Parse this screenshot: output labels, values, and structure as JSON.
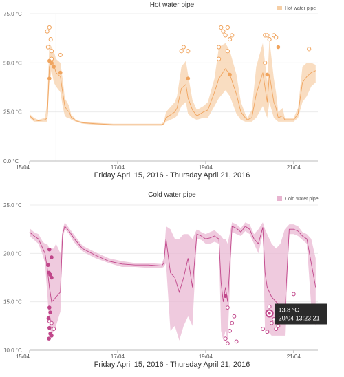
{
  "chart_data": [
    {
      "type": "line",
      "title": "Hot water pipe",
      "legend": {
        "label": "Hot water pipe",
        "position": "top-right"
      },
      "xlabel": "Friday April 15, 2016 - Thursday April 21, 2016",
      "ylabel": "",
      "xlim": [
        15.0,
        21.55
      ],
      "x_ticks": [
        {
          "x": 15,
          "label": "15/04"
        },
        {
          "x": 17,
          "label": "17/04"
        },
        {
          "x": 19,
          "label": "19/04"
        },
        {
          "x": 21,
          "label": "21/04"
        }
      ],
      "ylim": [
        0,
        75
      ],
      "y_ticks": [
        {
          "y": 0,
          "label": "0.0 °C"
        },
        {
          "y": 25,
          "label": "25.0 °C"
        },
        {
          "y": 50,
          "label": "50.0 °C"
        },
        {
          "y": 75,
          "label": "75.0 °C"
        }
      ],
      "color": "#f0a45e",
      "band_color": "#f6cfa6",
      "cursor_x": 15.6,
      "series": [
        {
          "x": [
            15.0,
            15.1,
            15.2,
            15.35,
            15.4,
            15.45,
            15.5,
            15.55,
            15.6,
            15.7,
            15.75,
            15.8,
            15.85,
            15.9,
            15.95,
            16.0,
            16.05,
            16.2,
            16.5,
            16.9,
            17.3,
            17.7,
            18.0,
            18.05,
            18.1,
            18.3,
            18.35,
            18.45,
            18.55,
            18.6,
            18.7,
            18.8,
            18.95,
            19.05,
            19.2,
            19.3,
            19.45,
            19.55,
            19.7,
            19.8,
            19.9,
            19.95,
            20.05,
            20.15,
            20.3,
            20.4,
            20.45,
            20.55,
            20.6,
            20.65,
            20.75,
            20.8,
            21.0,
            21.1,
            21.2,
            21.3,
            21.4,
            21.5
          ],
          "mean": [
            23,
            21,
            20.5,
            21,
            22,
            48,
            51,
            49,
            45,
            43,
            35,
            28,
            26,
            25,
            22,
            21.5,
            20.5,
            19.5,
            19,
            18.5,
            18.5,
            18.5,
            18.5,
            19,
            22,
            25,
            27,
            37,
            39,
            32,
            26,
            23,
            25,
            26,
            35,
            42,
            47,
            44,
            34,
            25,
            22,
            21,
            22,
            34,
            45,
            30,
            44,
            30,
            27,
            22,
            23,
            21,
            21,
            24,
            40,
            43,
            45,
            46
          ],
          "lower": [
            22,
            20,
            20,
            20,
            20,
            40,
            46,
            40,
            38,
            35,
            28,
            23,
            22,
            22,
            21,
            20.5,
            20,
            19,
            18.5,
            18,
            18,
            18,
            18,
            18.5,
            20,
            22,
            23,
            28,
            30,
            24,
            22,
            21,
            22,
            22,
            28,
            32,
            36,
            33,
            24,
            21,
            20,
            20,
            20,
            22,
            28,
            22,
            30,
            22,
            21,
            20,
            20,
            20,
            20,
            22,
            30,
            33,
            38,
            40
          ],
          "upper": [
            24,
            22,
            21,
            22,
            30,
            60,
            58,
            56,
            52,
            50,
            42,
            32,
            30,
            28,
            23,
            22.5,
            21,
            20,
            19.5,
            19,
            19,
            19,
            19,
            20,
            25,
            30,
            33,
            48,
            51,
            44,
            31,
            26,
            28,
            30,
            42,
            58,
            60,
            56,
            44,
            30,
            24,
            22,
            26,
            48,
            60,
            40,
            62,
            42,
            35,
            25,
            27,
            22,
            22,
            27,
            48,
            50,
            50,
            49
          ],
          "max_points": [
            [
              15.4,
              66
            ],
            [
              15.45,
              68
            ],
            [
              15.42,
              58
            ],
            [
              15.48,
              62
            ],
            [
              15.5,
              56
            ],
            [
              15.5,
              52
            ],
            [
              15.7,
              54
            ],
            [
              18.45,
              56
            ],
            [
              18.5,
              58
            ],
            [
              18.6,
              56
            ],
            [
              19.3,
              58
            ],
            [
              19.35,
              68
            ],
            [
              19.4,
              66
            ],
            [
              19.45,
              64
            ],
            [
              19.5,
              68
            ],
            [
              19.5,
              56
            ],
            [
              19.55,
              62
            ],
            [
              19.6,
              64
            ],
            [
              19.3,
              52
            ],
            [
              20.35,
              64
            ],
            [
              20.4,
              64
            ],
            [
              20.45,
              62
            ],
            [
              20.55,
              64
            ],
            [
              20.6,
              63
            ],
            [
              20.35,
              50
            ],
            [
              21.35,
              57
            ]
          ],
          "filled_points": [
            [
              15.45,
              51
            ],
            [
              15.5,
              50
            ],
            [
              15.55,
              48
            ],
            [
              15.45,
              42
            ],
            [
              15.7,
              45
            ],
            [
              18.6,
              42
            ],
            [
              19.55,
              44
            ],
            [
              20.4,
              44
            ],
            [
              20.65,
              58
            ]
          ]
        }
      ]
    },
    {
      "type": "line",
      "title": "Cold water pipe",
      "legend": {
        "label": "Cold water pipe",
        "position": "top-right"
      },
      "xlabel": "Friday April 15, 2016 - Thursday April 21, 2016",
      "ylabel": "",
      "xlim": [
        15.0,
        21.55
      ],
      "x_ticks": [
        {
          "x": 15,
          "label": "15/04"
        },
        {
          "x": 17,
          "label": "17/04"
        },
        {
          "x": 19,
          "label": "19/04"
        },
        {
          "x": 21,
          "label": "21/04"
        }
      ],
      "ylim": [
        10,
        25
      ],
      "y_ticks": [
        {
          "y": 10,
          "label": "10.0 °C"
        },
        {
          "y": 15,
          "label": "15.0 °C"
        },
        {
          "y": 20,
          "label": "20.0 °C"
        },
        {
          "y": 25,
          "label": "25.0 °C"
        }
      ],
      "color": "#c0468a",
      "band_color": "#e8b4d0",
      "series": [
        {
          "x": [
            15.0,
            15.1,
            15.2,
            15.3,
            15.35,
            15.4,
            15.45,
            15.5,
            15.55,
            15.6,
            15.7,
            15.75,
            15.8,
            15.9,
            16.0,
            16.2,
            16.5,
            16.8,
            17.1,
            17.4,
            17.7,
            18.0,
            18.05,
            18.1,
            18.2,
            18.3,
            18.4,
            18.5,
            18.6,
            18.7,
            18.8,
            18.9,
            19.0,
            19.1,
            19.2,
            19.3,
            19.35,
            19.4,
            19.45,
            19.5,
            19.6,
            19.7,
            19.8,
            19.9,
            20.0,
            20.1,
            20.2,
            20.3,
            20.35,
            20.4,
            20.5,
            20.6,
            20.7,
            20.8,
            20.9,
            21.0,
            21.1,
            21.2,
            21.3,
            21.4,
            21.5
          ],
          "mean": [
            22.2,
            21.8,
            21.5,
            20.5,
            20.0,
            18.5,
            16.5,
            15.0,
            15.2,
            15.5,
            16.0,
            22.0,
            22.8,
            22.3,
            21.6,
            20.5,
            19.8,
            19.2,
            18.9,
            18.8,
            18.8,
            18.7,
            19.0,
            21.5,
            18.0,
            17.5,
            16.0,
            17.5,
            19.5,
            16.5,
            22.0,
            21.8,
            21.5,
            21.6,
            21.8,
            21.5,
            17.0,
            15.0,
            16.5,
            15.0,
            22.8,
            22.6,
            22.2,
            22.8,
            22.5,
            21.5,
            21.0,
            22.7,
            18.0,
            16.5,
            15.5,
            15.0,
            14.5,
            13.8,
            22.5,
            22.5,
            22.3,
            21.8,
            21.5,
            19.0,
            16.5
          ],
          "lower": [
            21.8,
            21.4,
            21.0,
            19.8,
            19.0,
            16.0,
            12.5,
            11.5,
            12.0,
            12.5,
            14.0,
            21.5,
            22.5,
            22.0,
            21.2,
            20.2,
            19.5,
            19.0,
            18.6,
            18.6,
            18.5,
            18.5,
            18.6,
            19.0,
            12.0,
            12.5,
            11.0,
            12.5,
            13.5,
            12.5,
            21.5,
            21.4,
            21.0,
            21.0,
            21.2,
            21.0,
            12.0,
            11.0,
            12.0,
            11.0,
            22.2,
            22.0,
            21.8,
            22.3,
            22.0,
            21.0,
            20.0,
            22.0,
            12.0,
            12.0,
            11.5,
            11.5,
            11.5,
            11.5,
            22.0,
            22.0,
            21.8,
            21.4,
            21.0,
            14.5,
            12.5
          ],
          "upper": [
            22.6,
            22.2,
            22.0,
            21.2,
            21.0,
            21.0,
            20.5,
            20.5,
            20.5,
            21.0,
            20.0,
            22.5,
            23.2,
            22.6,
            22.0,
            20.8,
            20.1,
            19.5,
            19.2,
            19.0,
            19.0,
            18.9,
            19.5,
            22.8,
            22.5,
            21.5,
            21.5,
            22.0,
            22.0,
            21.5,
            22.5,
            22.2,
            22.0,
            22.2,
            22.4,
            22.0,
            21.8,
            21.5,
            21.5,
            21.0,
            23.2,
            23.0,
            22.6,
            23.2,
            23.0,
            22.0,
            22.5,
            23.2,
            22.5,
            22.0,
            21.0,
            20.5,
            21.0,
            22.5,
            23.0,
            23.0,
            22.8,
            22.2,
            22.0,
            21.5,
            19.5
          ]
        }
      ],
      "min_points": [
        [
          15.45,
          13.0
        ],
        [
          15.5,
          12.8
        ],
        [
          15.55,
          12.2
        ],
        [
          19.45,
          11.2
        ],
        [
          19.5,
          10.7
        ],
        [
          19.55,
          12.0
        ],
        [
          19.6,
          12.8
        ],
        [
          19.65,
          13.5
        ],
        [
          19.7,
          10.9
        ],
        [
          19.5,
          14.4
        ],
        [
          20.3,
          12.2
        ],
        [
          20.4,
          11.9
        ],
        [
          20.5,
          12.8
        ],
        [
          20.55,
          13.2
        ],
        [
          20.6,
          12.2
        ],
        [
          20.65,
          12.5
        ],
        [
          20.45,
          14.5
        ],
        [
          21.0,
          15.8
        ]
      ],
      "filled_points": [
        [
          15.45,
          20.4
        ],
        [
          15.5,
          19.6
        ],
        [
          15.42,
          18.8
        ],
        [
          15.44,
          18.0
        ],
        [
          15.47,
          17.8
        ],
        [
          15.5,
          17.5
        ],
        [
          15.45,
          14.4
        ],
        [
          15.47,
          13.9
        ],
        [
          15.43,
          13.3
        ],
        [
          15.45,
          12.3
        ],
        [
          15.47,
          11.7
        ],
        [
          15.44,
          11.2
        ],
        [
          15.5,
          11.5
        ],
        [
          19.45,
          15.6
        ]
      ],
      "tooltip": {
        "value": "13.8 °C",
        "time": "20/04 13:23:21",
        "x": 20.45,
        "y": 13.8
      }
    }
  ]
}
